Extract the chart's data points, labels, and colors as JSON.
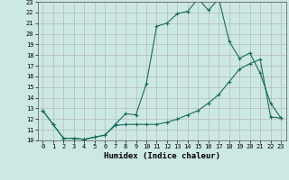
{
  "xlabel": "Humidex (Indice chaleur)",
  "ylabel": "",
  "background_color": "#cce8e4",
  "grid_color": "#b0b0b0",
  "line_color": "#1a6b5a",
  "x_min": 0,
  "x_max": 23,
  "y_min": 10,
  "y_max": 23,
  "series1_x": [
    0,
    1,
    2,
    3,
    4,
    5,
    6,
    7,
    8,
    9,
    10,
    11,
    12,
    13,
    14,
    15,
    16,
    17,
    18,
    19,
    20,
    21,
    22,
    23
  ],
  "series1_y": [
    12.8,
    11.5,
    10.2,
    10.2,
    10.1,
    10.3,
    10.5,
    11.5,
    12.5,
    12.4,
    15.3,
    20.7,
    21.0,
    21.9,
    22.1,
    23.3,
    22.2,
    23.3,
    19.3,
    17.7,
    18.2,
    16.3,
    13.5,
    12.1
  ],
  "series2_x": [
    0,
    1,
    2,
    3,
    4,
    5,
    6,
    7,
    8,
    9,
    10,
    11,
    12,
    13,
    14,
    15,
    16,
    17,
    18,
    19,
    20,
    21,
    22,
    23
  ],
  "series2_y": [
    12.8,
    11.5,
    10.2,
    10.2,
    10.1,
    10.3,
    10.5,
    11.4,
    11.5,
    11.5,
    11.5,
    11.5,
    11.7,
    12.0,
    12.4,
    12.8,
    13.5,
    14.3,
    15.5,
    16.7,
    17.2,
    17.6,
    12.2,
    12.1
  ]
}
